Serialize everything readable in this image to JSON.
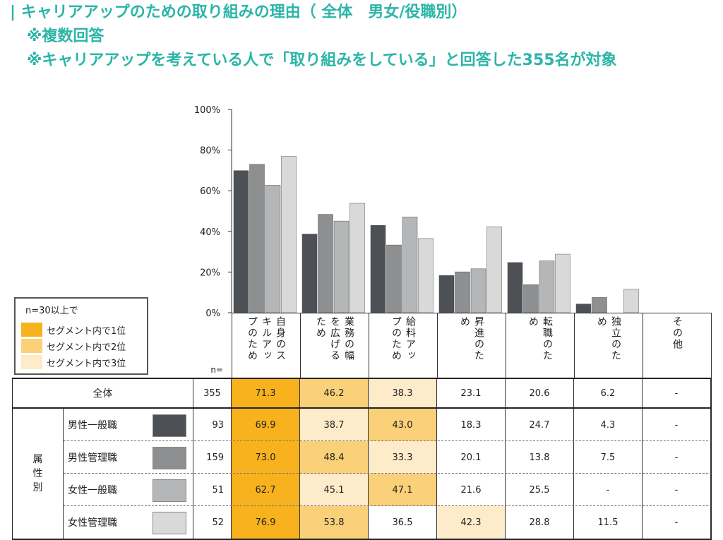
{
  "header": {
    "line1": "| キャリアアップのための取り組みの理由（ 全体　男女/役職別）",
    "line2": "※複数回答",
    "line3": "※キャリアアップを考えている人で「取り組みをしている」と回答した355名が対象"
  },
  "legend": {
    "title": "n=30以上で",
    "items": [
      {
        "label": "セグメント内で1位",
        "color": "#f7b21e"
      },
      {
        "label": "セグメント内で2位",
        "color": "#fad078"
      },
      {
        "label": "セグメント内で3位",
        "color": "#fdebc9"
      }
    ]
  },
  "table": {
    "n_label": "n=",
    "attr_label": "属性別",
    "total_label": "全体",
    "total_n": "355",
    "total_values": [
      "71.3",
      "46.2",
      "38.3",
      "23.1",
      "20.6",
      "6.2",
      "-"
    ],
    "total_ranks": [
      1,
      2,
      3,
      0,
      0,
      0,
      0
    ],
    "rows": [
      {
        "label": "男性一般職",
        "n": "93",
        "values": [
          "69.9",
          "38.7",
          "43.0",
          "18.3",
          "24.7",
          "4.3",
          "-"
        ],
        "ranks": [
          1,
          3,
          2,
          0,
          0,
          0,
          0
        ]
      },
      {
        "label": "男性管理職",
        "n": "159",
        "values": [
          "73.0",
          "48.4",
          "33.3",
          "20.1",
          "13.8",
          "7.5",
          "-"
        ],
        "ranks": [
          1,
          2,
          3,
          0,
          0,
          0,
          0
        ]
      },
      {
        "label": "女性一般職",
        "n": "51",
        "values": [
          "62.7",
          "45.1",
          "47.1",
          "21.6",
          "25.5",
          "-",
          "-"
        ],
        "ranks": [
          1,
          3,
          2,
          0,
          0,
          0,
          0
        ]
      },
      {
        "label": "女性管理職",
        "n": "52",
        "values": [
          "76.9",
          "53.8",
          "36.5",
          "42.3",
          "28.8",
          "11.5",
          "-"
        ],
        "ranks": [
          1,
          2,
          0,
          3,
          0,
          0,
          0
        ]
      }
    ]
  },
  "chart_data": {
    "type": "bar",
    "categories": [
      "自身のスキルアップのため",
      "業務の幅を広げるため",
      "給料アップのため",
      "昇進のため",
      "転職のため",
      "独立のため",
      "その他"
    ],
    "category_labels": [
      [
        "自身のス",
        "キルアッ",
        "プのため"
      ],
      [
        "業務の幅",
        "を広げる",
        "ため"
      ],
      [
        "給料アッ",
        "プのため"
      ],
      [
        "昇進のた",
        "め"
      ],
      [
        "転職のた",
        "め"
      ],
      [
        "独立のた",
        "め"
      ],
      [
        "その他"
      ]
    ],
    "series": [
      {
        "name": "男性一般職",
        "color": "#4d5055",
        "values": [
          69.9,
          38.7,
          43.0,
          18.3,
          24.7,
          4.3,
          0
        ]
      },
      {
        "name": "男性管理職",
        "color": "#8e8f91",
        "values": [
          73.0,
          48.4,
          33.3,
          20.1,
          13.8,
          7.5,
          0
        ]
      },
      {
        "name": "女性一般職",
        "color": "#b5b6b8",
        "values": [
          62.7,
          45.1,
          47.1,
          21.6,
          25.5,
          0,
          0
        ]
      },
      {
        "name": "女性管理職",
        "color": "#d9d9d9",
        "values": [
          76.9,
          53.8,
          36.5,
          42.3,
          28.8,
          11.5,
          0
        ]
      }
    ],
    "yticks": [
      "0%",
      "20%",
      "40%",
      "60%",
      "80%",
      "100%"
    ],
    "ylim": [
      0,
      100
    ]
  }
}
